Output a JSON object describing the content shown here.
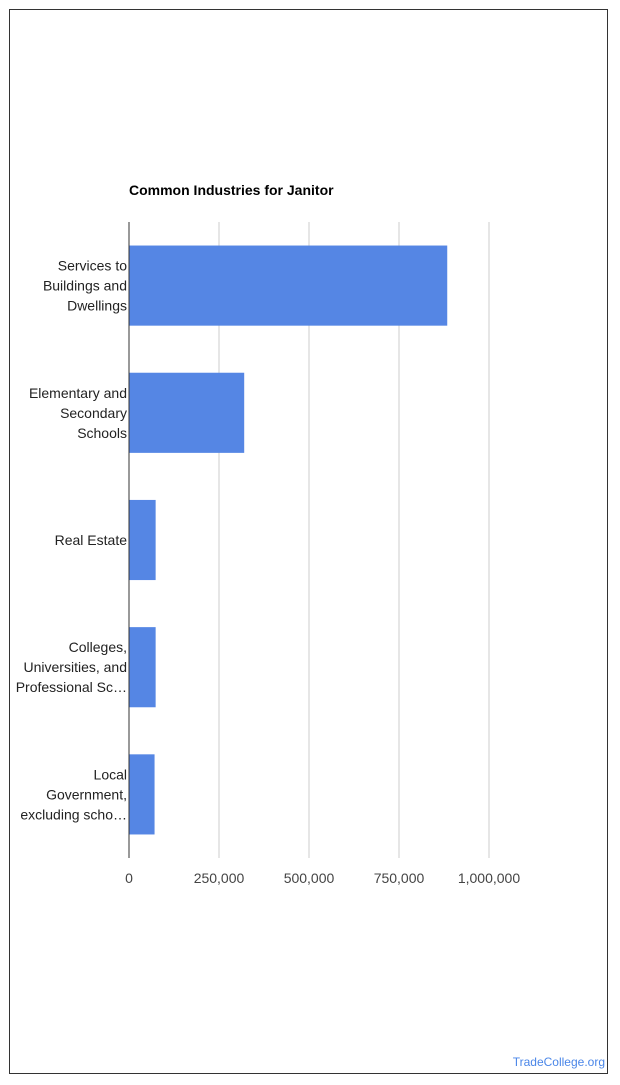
{
  "chart_data": {
    "type": "bar",
    "orientation": "horizontal",
    "title": "Common Industries for Janitor",
    "categories": [
      [
        "Services to",
        "Buildings and",
        "Dwellings"
      ],
      [
        "Elementary and",
        "Secondary",
        "Schools"
      ],
      [
        "Real Estate"
      ],
      [
        "Colleges,",
        "Universities, and",
        "Professional Sc…"
      ],
      [
        "Local",
        "Government,",
        "excluding scho…"
      ]
    ],
    "values": [
      884000,
      320000,
      74000,
      74000,
      71000
    ],
    "xlim": [
      0,
      1000000
    ],
    "xticks": [
      0,
      250000,
      500000,
      750000,
      1000000
    ],
    "xtick_labels": [
      "0",
      "250,000",
      "500,000",
      "750,000",
      "1,000,000"
    ],
    "grid": true,
    "bar_color": "#5586e4"
  },
  "watermark": "TradeCollege.org"
}
